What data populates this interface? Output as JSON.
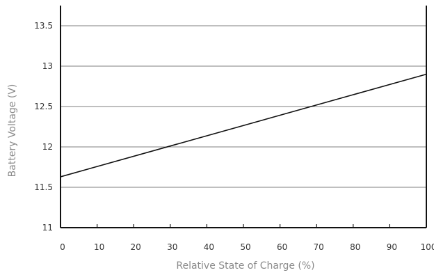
{
  "chart_data": {
    "type": "line",
    "xlabel": "Relative State of Charge (%)",
    "ylabel": "Battery Voltage (V)",
    "xlim": [
      0,
      100
    ],
    "ylim": [
      11,
      13.75
    ],
    "xticks": [
      "0",
      "10",
      "20",
      "30",
      "40",
      "50",
      "60",
      "70",
      "80",
      "90",
      "100"
    ],
    "yticks": [
      "11",
      "11.5",
      "12",
      "12.5",
      "13",
      "13.5"
    ],
    "grid": "horizontal",
    "series": [
      {
        "x": [
          0,
          100
        ],
        "y": [
          11.63,
          12.9
        ]
      }
    ]
  }
}
